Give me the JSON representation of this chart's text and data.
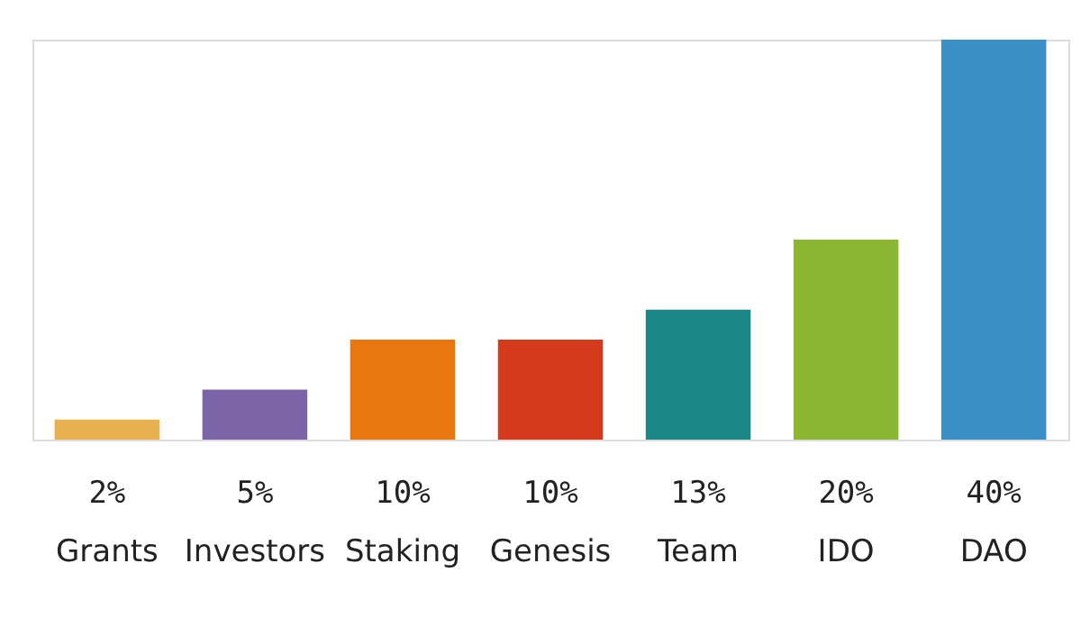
{
  "chart_data": {
    "type": "bar",
    "categories": [
      "Grants",
      "Investors",
      "Staking",
      "Genesis",
      "Team",
      "IDO",
      "DAO"
    ],
    "values": [
      2,
      5,
      10,
      10,
      13,
      20,
      40
    ],
    "colors": [
      "#e8b04f",
      "#7b64a8",
      "#e8770f",
      "#d33b1c",
      "#1c8786",
      "#8ab632",
      "#3a8fc4"
    ],
    "value_labels": [
      "2%",
      "5%",
      "10%",
      "10%",
      "13%",
      "20%",
      "40%"
    ]
  }
}
